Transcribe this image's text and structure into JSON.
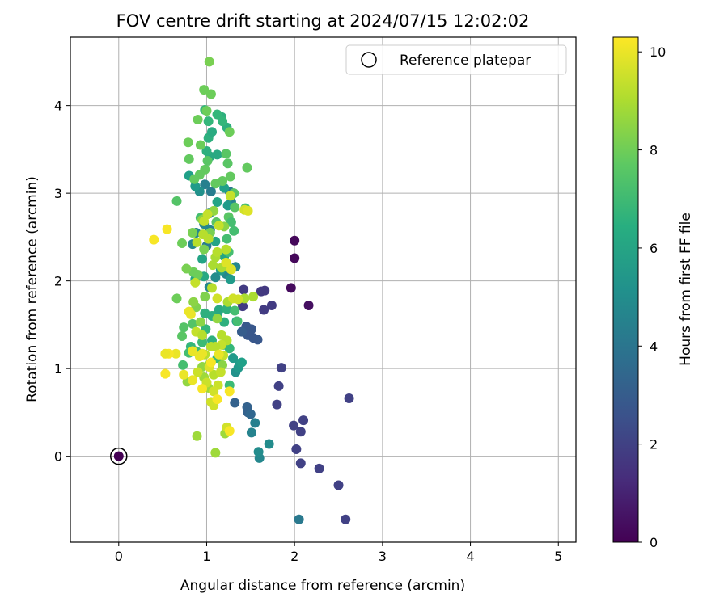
{
  "chart_data": {
    "type": "scatter",
    "title": "FOV centre drift starting at 2024/07/15 12:02:02",
    "xlabel": "Angular distance from reference (arcmin)",
    "ylabel": "Rotation from reference (arcmin)",
    "xlim": [
      -0.55,
      5.2
    ],
    "ylim": [
      -0.98,
      4.78
    ],
    "xticks": [
      0,
      1,
      2,
      3,
      4,
      5
    ],
    "yticks": [
      0,
      1,
      2,
      3,
      4
    ],
    "grid": true,
    "legend": {
      "placement": "top-right",
      "entries": [
        "Reference platepar"
      ]
    },
    "colorbar": {
      "label": "Hours from first FF file",
      "range": [
        0,
        10.3
      ],
      "ticks": [
        0,
        2,
        4,
        6,
        8,
        10
      ],
      "colormap": "viridis"
    },
    "reference_point": {
      "x": 0,
      "y": 0,
      "value": 0
    },
    "points": [
      [
        2.0,
        2.46,
        0.2
      ],
      [
        2.0,
        2.26,
        0.2
      ],
      [
        1.96,
        1.92,
        0.3
      ],
      [
        2.16,
        1.72,
        0.4
      ],
      [
        1.66,
        1.89,
        1.7
      ],
      [
        1.62,
        1.88,
        1.7
      ],
      [
        1.42,
        1.9,
        1.8
      ],
      [
        1.74,
        1.72,
        1.8
      ],
      [
        1.65,
        1.67,
        1.8
      ],
      [
        1.41,
        1.71,
        1.8
      ],
      [
        1.39,
        1.77,
        1.8
      ],
      [
        1.85,
        1.01,
        2.0
      ],
      [
        1.82,
        0.8,
        2.0
      ],
      [
        1.8,
        0.59,
        2.0
      ],
      [
        2.62,
        0.66,
        2.0
      ],
      [
        2.1,
        0.41,
        2.0
      ],
      [
        1.99,
        0.35,
        2.0
      ],
      [
        2.07,
        0.28,
        2.0
      ],
      [
        2.02,
        0.08,
        2.0
      ],
      [
        2.07,
        -0.08,
        2.0
      ],
      [
        2.28,
        -0.14,
        2.0
      ],
      [
        2.5,
        -0.33,
        2.0
      ],
      [
        2.58,
        -0.72,
        2.0
      ],
      [
        1.45,
        1.48,
        2.8
      ],
      [
        1.51,
        1.45,
        2.8
      ],
      [
        1.53,
        1.35,
        2.8
      ],
      [
        1.58,
        1.33,
        2.8
      ],
      [
        1.47,
        1.38,
        2.8
      ],
      [
        1.4,
        1.42,
        3.0
      ],
      [
        1.32,
        0.61,
        3.2
      ],
      [
        1.46,
        0.56,
        3.2
      ],
      [
        1.47,
        0.5,
        3.2
      ],
      [
        1.5,
        0.48,
        3.4
      ],
      [
        2.05,
        -0.72,
        4.2
      ],
      [
        1.55,
        0.38,
        4.5
      ],
      [
        1.51,
        0.27,
        4.6
      ],
      [
        1.6,
        -0.02,
        4.8
      ],
      [
        1.71,
        0.14,
        5.0
      ],
      [
        1.59,
        0.05,
        5.0
      ],
      [
        1.33,
        0.96,
        5.2
      ],
      [
        1.36,
        1.01,
        5.5
      ],
      [
        1.3,
        1.12,
        5.6
      ],
      [
        1.38,
        1.06,
        5.6
      ],
      [
        1.34,
        1.54,
        5.8
      ],
      [
        1.4,
        1.07,
        5.8
      ],
      [
        1.33,
        2.16,
        4.8
      ],
      [
        1.22,
        2.08,
        4.8
      ],
      [
        1.27,
        2.02,
        5.6
      ],
      [
        1.16,
        2.12,
        5.6
      ],
      [
        1.03,
        1.93,
        4.8
      ],
      [
        1.1,
        2.04,
        5.0
      ],
      [
        1.26,
        3.02,
        4.2
      ],
      [
        1.28,
        2.9,
        4.6
      ],
      [
        1.05,
        3.02,
        4.3
      ],
      [
        0.98,
        3.1,
        4.5
      ],
      [
        1.04,
        2.58,
        4.6
      ],
      [
        1.0,
        2.4,
        4.3
      ],
      [
        0.84,
        2.42,
        4.8
      ],
      [
        0.88,
        2.55,
        4.8
      ],
      [
        0.97,
        2.65,
        4.8
      ],
      [
        1.03,
        2.77,
        4.8
      ],
      [
        0.92,
        3.02,
        5.2
      ],
      [
        0.87,
        3.08,
        5.6
      ],
      [
        0.8,
        3.2,
        5.8
      ],
      [
        1.24,
        2.86,
        5.6
      ],
      [
        1.2,
        3.06,
        5.8
      ],
      [
        1.12,
        2.9,
        6.0
      ],
      [
        0.95,
        2.25,
        6.0
      ],
      [
        1.1,
        2.45,
        6.0
      ],
      [
        0.97,
        2.05,
        6.2
      ],
      [
        0.87,
        2.02,
        6.0
      ],
      [
        1.2,
        2.28,
        6.0
      ],
      [
        1.14,
        1.67,
        6.2
      ],
      [
        1.23,
        1.68,
        6.5
      ],
      [
        1.2,
        1.53,
        6.5
      ],
      [
        1.12,
        1.62,
        6.2
      ],
      [
        0.98,
        1.63,
        6.5
      ],
      [
        1.06,
        1.6,
        6.5
      ],
      [
        1.04,
        3.42,
        6.2
      ],
      [
        1.12,
        3.44,
        6.2
      ],
      [
        1.0,
        3.48,
        6.5
      ],
      [
        1.02,
        3.63,
        6.5
      ],
      [
        1.06,
        3.7,
        6.3
      ],
      [
        1.17,
        3.87,
        6.5
      ],
      [
        1.23,
        3.75,
        6.5
      ],
      [
        0.98,
        3.95,
        6.8
      ],
      [
        1.12,
        3.9,
        6.8
      ],
      [
        1.18,
        3.82,
        6.8
      ],
      [
        1.02,
        3.82,
        6.8
      ],
      [
        1.26,
        1.23,
        6.8
      ],
      [
        1.19,
        1.27,
        6.8
      ],
      [
        1.06,
        1.32,
        6.5
      ],
      [
        0.82,
        1.25,
        6.8
      ],
      [
        0.99,
        1.45,
        6.8
      ],
      [
        1.12,
        1.12,
        7.0
      ],
      [
        0.8,
        1.18,
        7.2
      ],
      [
        0.88,
        1.2,
        7.0
      ],
      [
        0.95,
        1.3,
        7.0
      ],
      [
        1.26,
        0.81,
        7.0
      ],
      [
        0.73,
        1.04,
        7.2
      ],
      [
        0.84,
        1.51,
        7.5
      ],
      [
        0.74,
        1.47,
        7.5
      ],
      [
        0.72,
        1.37,
        7.6
      ],
      [
        1.35,
        1.54,
        7.2
      ],
      [
        1.32,
        1.66,
        7.2
      ],
      [
        1.31,
        2.57,
        7.2
      ],
      [
        1.23,
        2.48,
        7.2
      ],
      [
        1.25,
        2.33,
        7.2
      ],
      [
        0.93,
        2.72,
        7.2
      ],
      [
        1.11,
        2.67,
        7.6
      ],
      [
        1.25,
        2.73,
        7.6
      ],
      [
        1.32,
        2.84,
        7.6
      ],
      [
        1.28,
        2.67,
        7.2
      ],
      [
        1.44,
        2.83,
        7.2
      ],
      [
        1.46,
        3.29,
        7.8
      ],
      [
        1.31,
        3.0,
        7.6
      ],
      [
        1.27,
        3.19,
        7.8
      ],
      [
        1.24,
        3.34,
        7.6
      ],
      [
        1.18,
        3.14,
        7.8
      ],
      [
        1.1,
        3.11,
        7.8
      ],
      [
        0.98,
        3.27,
        7.8
      ],
      [
        0.92,
        3.21,
        7.8
      ],
      [
        0.86,
        3.16,
        7.8
      ],
      [
        0.66,
        2.91,
        7.5
      ],
      [
        0.8,
        3.39,
        7.8
      ],
      [
        1.01,
        3.37,
        7.6
      ],
      [
        1.22,
        3.45,
        7.6
      ],
      [
        0.93,
        3.55,
        8.0
      ],
      [
        0.79,
        3.58,
        8.0
      ],
      [
        0.9,
        3.84,
        8.0
      ],
      [
        1.26,
        3.7,
        8.0
      ],
      [
        1.0,
        3.94,
        8.0
      ],
      [
        1.05,
        4.13,
        8.0
      ],
      [
        0.97,
        4.18,
        8.0
      ],
      [
        1.03,
        4.5,
        8.2
      ],
      [
        0.66,
        1.8,
        8.0
      ],
      [
        0.72,
        2.43,
        8.0
      ],
      [
        0.84,
        2.55,
        8.2
      ],
      [
        0.85,
        2.1,
        8.0
      ],
      [
        0.77,
        2.14,
        8.2
      ],
      [
        0.9,
        2.07,
        8.0
      ],
      [
        0.97,
        2.36,
        8.2
      ],
      [
        1.04,
        2.55,
        8.2
      ],
      [
        0.95,
        2.7,
        8.5
      ],
      [
        1.08,
        2.8,
        8.6
      ],
      [
        1.2,
        2.62,
        8.5
      ],
      [
        0.98,
        1.82,
        8.3
      ],
      [
        0.88,
        1.7,
        8.3
      ],
      [
        0.85,
        1.76,
        8.5
      ],
      [
        0.93,
        1.53,
        8.5
      ],
      [
        1.12,
        1.57,
        8.6
      ],
      [
        0.95,
        1.02,
        8.6
      ],
      [
        1.04,
        1.06,
        8.6
      ],
      [
        1.18,
        1.04,
        8.5
      ],
      [
        0.78,
        0.85,
        8.6
      ],
      [
        0.97,
        0.9,
        8.8
      ],
      [
        1.02,
        0.78,
        8.8
      ],
      [
        1.21,
        0.26,
        8.8
      ],
      [
        1.1,
        0.04,
        8.8
      ],
      [
        0.89,
        0.23,
        8.8
      ],
      [
        1.43,
        1.8,
        9.0
      ],
      [
        1.53,
        1.82,
        9.0
      ],
      [
        1.24,
        1.76,
        9.0
      ],
      [
        1.17,
        2.15,
        9.0
      ],
      [
        1.27,
        2.14,
        9.0
      ],
      [
        1.1,
        2.27,
        9.0
      ],
      [
        1.07,
        2.18,
        9.0
      ],
      [
        1.12,
        2.33,
        9.2
      ],
      [
        1.22,
        2.36,
        9.2
      ],
      [
        1.06,
        1.92,
        9.2
      ],
      [
        0.87,
        1.98,
        9.4
      ],
      [
        0.88,
        1.42,
        9.4
      ],
      [
        0.95,
        1.38,
        9.2
      ],
      [
        1.17,
        1.38,
        9.2
      ],
      [
        1.23,
        1.32,
        9.2
      ],
      [
        1.19,
        1.15,
        9.4
      ],
      [
        1.17,
        1.27,
        9.4
      ],
      [
        1.1,
        1.25,
        9.2
      ],
      [
        1.05,
        1.25,
        9.2
      ],
      [
        0.98,
        1.16,
        9.2
      ],
      [
        1.08,
        0.93,
        9.2
      ],
      [
        1.16,
        0.96,
        9.4
      ],
      [
        0.9,
        0.96,
        9.5
      ],
      [
        1.0,
        0.84,
        9.5
      ],
      [
        1.13,
        0.81,
        9.5
      ],
      [
        1.08,
        0.74,
        9.6
      ],
      [
        1.05,
        0.62,
        9.6
      ],
      [
        1.08,
        0.58,
        9.6
      ],
      [
        1.23,
        0.33,
        9.6
      ],
      [
        1.43,
        2.81,
        9.6
      ],
      [
        1.47,
        2.8,
        9.8
      ],
      [
        1.27,
        2.97,
        9.4
      ],
      [
        1.14,
        2.63,
        9.4
      ],
      [
        1.01,
        2.76,
        9.4
      ],
      [
        0.97,
        2.68,
        9.4
      ],
      [
        1.02,
        2.48,
        9.2
      ],
      [
        0.96,
        2.53,
        9.2
      ],
      [
        0.89,
        2.44,
        9.2
      ],
      [
        1.12,
        1.8,
        9.6
      ],
      [
        1.3,
        1.8,
        9.6
      ],
      [
        1.36,
        1.79,
        9.6
      ],
      [
        1.28,
        2.13,
        9.8
      ],
      [
        1.22,
        2.21,
        9.8
      ],
      [
        0.8,
        1.65,
        10.0
      ],
      [
        0.82,
        1.62,
        10.0
      ],
      [
        1.14,
        1.16,
        10.0
      ],
      [
        1.03,
        1.02,
        9.8
      ],
      [
        1.05,
        1.07,
        10.2
      ],
      [
        0.92,
        1.14,
        10.0
      ],
      [
        0.95,
        1.17,
        10.0
      ],
      [
        0.84,
        1.2,
        10.0
      ],
      [
        0.65,
        1.17,
        10.0
      ],
      [
        0.57,
        1.17,
        10.2
      ],
      [
        0.53,
        1.17,
        10.0
      ],
      [
        0.74,
        0.93,
        10.0
      ],
      [
        0.53,
        0.94,
        10.2
      ],
      [
        0.84,
        0.87,
        10.0
      ],
      [
        0.95,
        0.77,
        10.2
      ],
      [
        1.12,
        0.65,
        10.2
      ],
      [
        1.26,
        0.74,
        10.2
      ],
      [
        1.26,
        0.29,
        10.2
      ],
      [
        0.55,
        2.59,
        10.2
      ],
      [
        0.4,
        2.47,
        10.2
      ]
    ]
  }
}
